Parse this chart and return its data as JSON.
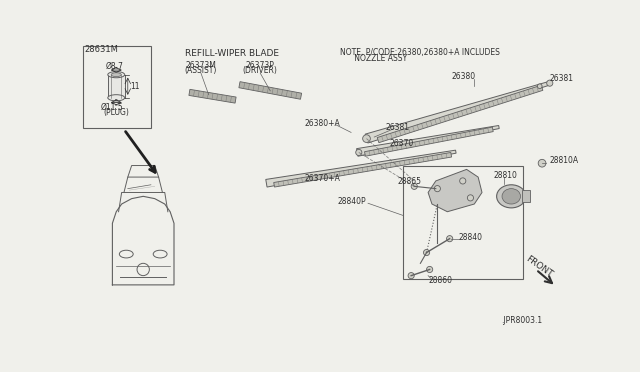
{
  "bg_color": "#f0f0eb",
  "line_color": "#606060",
  "dark_color": "#303030",
  "text_color": "#303030",
  "note_text1": "NOTE, P/CODE:26380,26380+A INCLUDES",
  "note_text2": "      NOZZLE ASSY",
  "refill_text": "REFILL-WIPER BLADE",
  "plug_label": "28631M",
  "phi87": "Ø8.7",
  "dim11": "11",
  "phi115": "Ø11.5",
  "plug_text": "(PLUG)",
  "front_label": "FRONT",
  "ref_num": ".JPR8003.1"
}
